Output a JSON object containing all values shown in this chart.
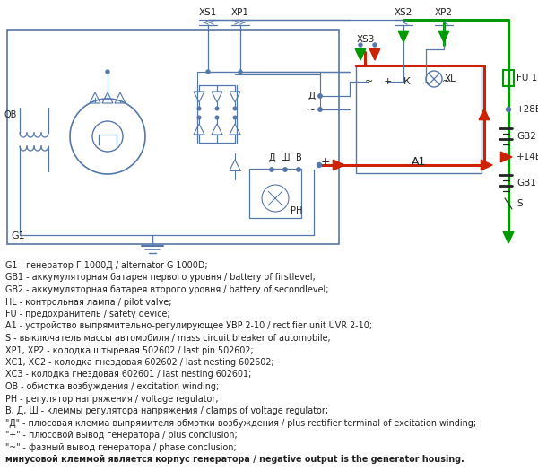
{
  "blue": "#5577AA",
  "red": "#CC2200",
  "green": "#009900",
  "dark": "#222222",
  "bg": "#FFFFFF",
  "legend_lines": [
    "G1 - генератор Г 1000Д / alternator G 1000D;",
    "GB1 - аккумуляторная батарея первого уровня / battery of firstlevel;",
    "GB2 - аккумуляторная батарея второго уровня / battery of secondlevel;",
    "HL - контрольная лампа / pilot valve;",
    "FU - предохранитель / safety device;",
    "А1 - устройство выпрямительно-регулирующее УВР 2-10 / rectifier unit UVR 2-10;",
    "S - выключатель массы автомобиля / mass circuit breaker of automobile;",
    "ХР1, ХР2 - колодка штыревая 502602 / last pin 502602;",
    "ХС1, ХС2 - колодка гнездовая 602602 / last nesting 602602;",
    "ХС3 - колодка гнездовая 602601 / last nesting 602601;",
    "ОВ - обмотка возбуждения / excitation winding;",
    "РН - регулятор напряжения / voltage regulator;",
    "В, Д, Ш - клеммы регулятора напряжения / clamps of voltage regulator;",
    "\"Д\" - плюсовая клемма выпрямителя обмотки возбуждения / plus rectifier terminal of excitation winding;",
    "\"+\" - плюсовой вывод генератора / plus conclusion;",
    "\"~\" - фазный вывод генератора / phase conclusion;",
    "минусовой клеммой является корпус генератора / negative output is the generator housing."
  ]
}
